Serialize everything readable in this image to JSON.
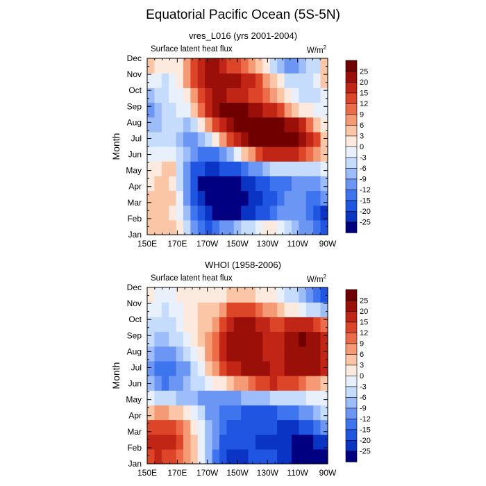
{
  "title": "Equatorial Pacific Ocean (5S-5N)",
  "panels": [
    {
      "subtitle": "vres_L016 (yrs 2001-2004)",
      "variable": "Surface latent heat flux",
      "units": "W/m",
      "units_sup": "2",
      "ylabel": "Month"
    },
    {
      "subtitle": "WHOI (1958-2006)",
      "variable": "Surface latent heat flux",
      "units": "W/m",
      "units_sup": "2",
      "ylabel": "Month"
    }
  ],
  "colors": {
    "levels": [
      "#000080",
      "#0a34c4",
      "#1f55e0",
      "#3e74ee",
      "#6b96f4",
      "#9cbcfa",
      "#c6dcfd",
      "#e8f0fc",
      "#fdeade",
      "#fbc6a6",
      "#f49a75",
      "#ec6c49",
      "#dc4527",
      "#c02515",
      "#9a1008",
      "#700000"
    ]
  },
  "chart_data": [
    {
      "type": "heatmap",
      "title": "vres_L016 (yrs 2001-2004)",
      "subtitle": "Surface latent heat flux",
      "xlabel": "",
      "ylabel": "Month",
      "units": "W/m2",
      "x_tick_labels": [
        "150E",
        "170E",
        "170W",
        "150W",
        "130W",
        "110W",
        "90W"
      ],
      "x_lon": [
        150,
        155,
        160,
        165,
        170,
        175,
        180,
        185,
        190,
        195,
        200,
        205,
        210,
        215,
        220,
        225,
        230,
        235,
        240,
        245,
        250,
        255,
        260,
        265,
        270
      ],
      "y_tick_labels": [
        "Jan",
        "Feb",
        "Mar",
        "Apr",
        "May",
        "Jun",
        "Jul",
        "Aug",
        "Sep",
        "Oct",
        "Nov",
        "Dec"
      ],
      "colorbar_levels": [
        -25,
        -20,
        -15,
        -12,
        -9,
        -6,
        -3,
        0,
        3,
        6,
        9,
        12,
        15,
        20,
        25
      ],
      "colorbar_labels": [
        "-25",
        "-20",
        "-15",
        "-12",
        "-9",
        "-6",
        "-3",
        "0",
        "3",
        "6",
        "9",
        "12",
        "15",
        "20",
        "25"
      ],
      "values_approx": [
        [
          5,
          5,
          4,
          3,
          0,
          -5,
          -10,
          -15,
          -18,
          -15,
          -12,
          -10,
          -8,
          -6,
          -4,
          -2,
          0,
          0,
          -2,
          -5,
          -8,
          -10,
          -12,
          -15,
          -18
        ],
        [
          4,
          4,
          3,
          2,
          -2,
          -8,
          -15,
          -20,
          -25,
          -26,
          -27,
          -28,
          -26,
          -24,
          -22,
          -20,
          -18,
          -15,
          -12,
          -10,
          -10,
          -12,
          -15,
          -20,
          -22
        ],
        [
          3,
          4,
          5,
          3,
          -3,
          -10,
          -18,
          -25,
          -28,
          -30,
          -30,
          -29,
          -27,
          -26,
          -25,
          -22,
          -20,
          -18,
          -15,
          -12,
          -10,
          -12,
          -15,
          -15,
          -12
        ],
        [
          2,
          3,
          4,
          2,
          -4,
          -12,
          -20,
          -26,
          -28,
          -29,
          -29,
          -28,
          -26,
          -24,
          -22,
          -20,
          -18,
          -15,
          -14,
          -13,
          -12,
          -12,
          -12,
          -10,
          -8
        ],
        [
          0,
          2,
          5,
          3,
          -5,
          -10,
          -16,
          -20,
          -22,
          -22,
          -20,
          -18,
          -16,
          -14,
          -12,
          -10,
          -8,
          -6,
          -5,
          -4,
          -4,
          -5,
          -6,
          -5,
          -3
        ],
        [
          -3,
          -2,
          -1,
          -3,
          -5,
          -8,
          -10,
          -13,
          -15,
          -15,
          -12,
          -8,
          -3,
          3,
          8,
          12,
          15,
          18,
          18,
          16,
          15,
          12,
          10,
          6,
          3
        ],
        [
          -6,
          -5,
          -5,
          -6,
          -8,
          -10,
          -12,
          -9,
          -5,
          2,
          8,
          14,
          18,
          22,
          26,
          28,
          30,
          31,
          30,
          28,
          25,
          22,
          18,
          12,
          5
        ],
        [
          -8,
          -7,
          -6,
          -5,
          -6,
          -8,
          -5,
          2,
          8,
          14,
          18,
          22,
          26,
          30,
          30,
          28,
          28,
          27,
          26,
          24,
          20,
          15,
          10,
          5,
          0
        ],
        [
          -10,
          -8,
          -6,
          -4,
          -3,
          -1,
          3,
          10,
          16,
          22,
          28,
          28,
          27,
          26,
          24,
          20,
          18,
          15,
          12,
          8,
          5,
          2,
          0,
          -2,
          -3
        ],
        [
          -8,
          -6,
          -5,
          -3,
          -1,
          2,
          6,
          12,
          16,
          20,
          20,
          18,
          16,
          15,
          14,
          12,
          10,
          8,
          5,
          2,
          -2,
          -5,
          -6,
          -5,
          -3
        ],
        [
          -2,
          -3,
          -4,
          -2,
          1,
          6,
          12,
          18,
          22,
          24,
          24,
          22,
          20,
          18,
          15,
          12,
          8,
          4,
          0,
          -4,
          -6,
          -6,
          -5,
          -3,
          3
        ],
        [
          3,
          2,
          1,
          0,
          2,
          6,
          12,
          16,
          20,
          20,
          18,
          14,
          12,
          10,
          8,
          4,
          0,
          -4,
          -8,
          -10,
          -10,
          -8,
          -6,
          -4,
          4
        ]
      ]
    },
    {
      "type": "heatmap",
      "title": "WHOI (1958-2006)",
      "subtitle": "Surface latent heat flux",
      "xlabel": "",
      "ylabel": "Month",
      "units": "W/m2",
      "x_tick_labels": [
        "150E",
        "170E",
        "170W",
        "150W",
        "130W",
        "110W",
        "90W"
      ],
      "x_lon": [
        150,
        155,
        160,
        165,
        170,
        175,
        180,
        185,
        190,
        195,
        200,
        205,
        210,
        215,
        220,
        225,
        230,
        235,
        240,
        245,
        250,
        255,
        260,
        265,
        270
      ],
      "y_tick_labels": [
        "Jan",
        "Feb",
        "Mar",
        "Apr",
        "May",
        "Jun",
        "Jul",
        "Aug",
        "Sep",
        "Oct",
        "Nov",
        "Dec"
      ],
      "colorbar_levels": [
        -25,
        -20,
        -15,
        -12,
        -9,
        -6,
        -3,
        0,
        3,
        6,
        9,
        12,
        15,
        20,
        25
      ],
      "colorbar_labels": [
        "-25",
        "-20",
        "-15",
        "-12",
        "-9",
        "-6",
        "-3",
        "0",
        "3",
        "6",
        "9",
        "12",
        "15",
        "20",
        "25"
      ],
      "values_approx": [
        [
          14,
          16,
          14,
          12,
          10,
          8,
          4,
          -2,
          -8,
          -14,
          -20,
          -24,
          -24,
          -22,
          -20,
          -18,
          -18,
          -20,
          -22,
          -24,
          -26,
          -26,
          -27,
          -28,
          -28
        ],
        [
          16,
          18,
          17,
          15,
          12,
          8,
          4,
          -2,
          -8,
          -12,
          -16,
          -18,
          -20,
          -20,
          -20,
          -22,
          -22,
          -22,
          -24,
          -24,
          -26,
          -26,
          -26,
          -25,
          -22
        ],
        [
          12,
          14,
          14,
          13,
          10,
          6,
          2,
          -3,
          -8,
          -12,
          -14,
          -16,
          -18,
          -18,
          -18,
          -18,
          -20,
          -20,
          -22,
          -22,
          -22,
          -20,
          -18,
          -15,
          -12
        ],
        [
          5,
          6,
          6,
          5,
          3,
          0,
          -2,
          -6,
          -10,
          -12,
          -14,
          -15,
          -15,
          -16,
          -16,
          -17,
          -17,
          -16,
          -15,
          -14,
          -13,
          -12,
          -10,
          -8,
          -6
        ],
        [
          -3,
          -4,
          -5,
          -6,
          -7,
          -8,
          -8,
          -10,
          -10,
          -10,
          -10,
          -10,
          -10,
          -8,
          -8,
          -8,
          -7,
          -6,
          -5,
          -4,
          -4,
          -4,
          -3,
          -2,
          -2
        ],
        [
          -8,
          -12,
          -14,
          -12,
          -10,
          -8,
          -6,
          -4,
          -2,
          0,
          2,
          4,
          6,
          8,
          10,
          12,
          14,
          15,
          14,
          14,
          12,
          10,
          8,
          6,
          4
        ],
        [
          -10,
          -14,
          -15,
          -14,
          -12,
          -10,
          -6,
          -2,
          3,
          8,
          12,
          16,
          18,
          20,
          22,
          22,
          20,
          18,
          18,
          20,
          22,
          24,
          22,
          20,
          18
        ],
        [
          -8,
          -10,
          -11,
          -10,
          -8,
          -6,
          -2,
          2,
          6,
          10,
          16,
          20,
          22,
          24,
          24,
          22,
          18,
          16,
          18,
          22,
          24,
          24,
          22,
          20,
          16
        ],
        [
          -6,
          -8,
          -8,
          -6,
          -4,
          -2,
          0,
          3,
          6,
          10,
          16,
          20,
          22,
          22,
          22,
          20,
          18,
          16,
          18,
          22,
          24,
          26,
          24,
          22,
          16
        ],
        [
          -4,
          -5,
          -5,
          -4,
          -2,
          0,
          2,
          3,
          5,
          8,
          14,
          18,
          20,
          20,
          20,
          18,
          16,
          14,
          14,
          16,
          18,
          18,
          16,
          14,
          10
        ],
        [
          -2,
          -3,
          -4,
          -3,
          -1,
          1,
          2,
          3,
          4,
          5,
          8,
          12,
          14,
          14,
          12,
          10,
          8,
          6,
          4,
          2,
          0,
          -2,
          -4,
          -6,
          -8
        ],
        [
          0,
          -1,
          -2,
          -1,
          0,
          1,
          1,
          1,
          1,
          1,
          2,
          3,
          4,
          4,
          3,
          2,
          1,
          0,
          -2,
          -4,
          -6,
          -8,
          -10,
          -14,
          -18
        ]
      ]
    }
  ]
}
